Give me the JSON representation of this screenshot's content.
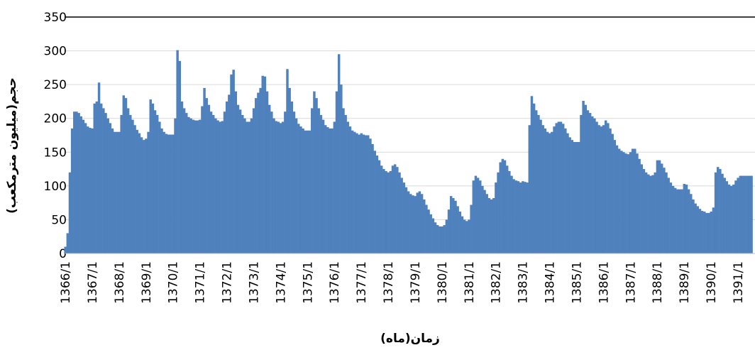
{
  "chart_data": {
    "type": "bar",
    "ylabel": "حجم(میلیون مترمکعب)",
    "xlabel": "زمان(ماه)",
    "color": "#4f81bd",
    "grid": true,
    "ylim": [
      0,
      350
    ],
    "yticks": [
      0,
      50,
      100,
      150,
      200,
      250,
      300,
      350
    ],
    "categories": [
      "1366/1",
      null,
      null,
      null,
      null,
      null,
      null,
      null,
      null,
      null,
      null,
      null,
      "1367/1",
      null,
      null,
      null,
      null,
      null,
      null,
      null,
      null,
      null,
      null,
      null,
      "1368/1",
      null,
      null,
      null,
      null,
      null,
      null,
      null,
      null,
      null,
      null,
      null,
      "1369/1",
      null,
      null,
      null,
      null,
      null,
      null,
      null,
      null,
      null,
      null,
      null,
      "1370/1",
      null,
      null,
      null,
      null,
      null,
      null,
      null,
      null,
      null,
      null,
      null,
      "1371/1",
      null,
      null,
      null,
      null,
      null,
      null,
      null,
      null,
      null,
      null,
      null,
      "1372/1",
      null,
      null,
      null,
      null,
      null,
      null,
      null,
      null,
      null,
      null,
      null,
      "1373/1",
      null,
      null,
      null,
      null,
      null,
      null,
      null,
      null,
      null,
      null,
      null,
      "1374/1",
      null,
      null,
      null,
      null,
      null,
      null,
      null,
      null,
      null,
      null,
      null,
      "1375/1",
      null,
      null,
      null,
      null,
      null,
      null,
      null,
      null,
      null,
      null,
      null,
      "1376/1",
      null,
      null,
      null,
      null,
      null,
      null,
      null,
      null,
      null,
      null,
      null,
      "1377/1",
      null,
      null,
      null,
      null,
      null,
      null,
      null,
      null,
      null,
      null,
      null,
      "1378/1",
      null,
      null,
      null,
      null,
      null,
      null,
      null,
      null,
      null,
      null,
      null,
      "1379/1",
      null,
      null,
      null,
      null,
      null,
      null,
      null,
      null,
      null,
      null,
      null,
      "1380/1",
      null,
      null,
      null,
      null,
      null,
      null,
      null,
      null,
      null,
      null,
      null,
      "1381/1",
      null,
      null,
      null,
      null,
      null,
      null,
      null,
      null,
      null,
      null,
      null,
      "1382/1",
      null,
      null,
      null,
      null,
      null,
      null,
      null,
      null,
      null,
      null,
      null,
      "1383/1",
      null,
      null,
      null,
      null,
      null,
      null,
      null,
      null,
      null,
      null,
      null,
      "1384/1",
      null,
      null,
      null,
      null,
      null,
      null,
      null,
      null,
      null,
      null,
      null,
      "1385/1",
      null,
      null,
      null,
      null,
      null,
      null,
      null,
      null,
      null,
      null,
      null,
      "1386/1",
      null,
      null,
      null,
      null,
      null,
      null,
      null,
      null,
      null,
      null,
      null,
      "1387/1",
      null,
      null,
      null,
      null,
      null,
      null,
      null,
      null,
      null,
      null,
      null,
      "1388/1",
      null,
      null,
      null,
      null,
      null,
      null,
      null,
      null,
      null,
      null,
      null,
      "1389/1",
      null,
      null,
      null,
      null,
      null,
      null,
      null,
      null,
      null,
      null,
      null,
      "1390/1",
      null,
      null,
      null,
      null,
      null,
      null,
      null,
      null,
      null,
      null,
      null,
      "1391/1",
      null,
      null,
      null,
      null,
      null,
      null
    ],
    "values": [
      10,
      30,
      120,
      185,
      210,
      210,
      208,
      203,
      198,
      193,
      188,
      186,
      185,
      222,
      225,
      253,
      222,
      215,
      208,
      200,
      193,
      185,
      180,
      180,
      180,
      205,
      234,
      230,
      215,
      205,
      198,
      190,
      183,
      178,
      172,
      168,
      170,
      180,
      228,
      222,
      212,
      205,
      195,
      185,
      180,
      177,
      176,
      176,
      176,
      200,
      301,
      285,
      225,
      215,
      208,
      202,
      200,
      198,
      197,
      197,
      198,
      218,
      245,
      230,
      220,
      210,
      205,
      200,
      197,
      195,
      196,
      210,
      225,
      235,
      265,
      272,
      240,
      220,
      213,
      205,
      200,
      195,
      195,
      200,
      215,
      230,
      238,
      245,
      263,
      262,
      240,
      220,
      210,
      200,
      196,
      195,
      193,
      195,
      210,
      273,
      245,
      225,
      210,
      200,
      192,
      188,
      185,
      182,
      182,
      182,
      215,
      240,
      230,
      215,
      205,
      198,
      190,
      187,
      185,
      185,
      195,
      240,
      295,
      250,
      215,
      205,
      195,
      188,
      182,
      180,
      178,
      176,
      178,
      176,
      175,
      175,
      170,
      162,
      152,
      145,
      138,
      130,
      125,
      122,
      120,
      122,
      130,
      132,
      128,
      120,
      112,
      105,
      98,
      92,
      88,
      86,
      85,
      90,
      92,
      88,
      80,
      72,
      65,
      58,
      52,
      46,
      42,
      40,
      40,
      42,
      50,
      65,
      85,
      82,
      78,
      70,
      62,
      55,
      50,
      48,
      50,
      72,
      108,
      115,
      112,
      108,
      100,
      94,
      88,
      82,
      80,
      82,
      105,
      120,
      135,
      140,
      138,
      130,
      122,
      115,
      110,
      108,
      107,
      105,
      107,
      106,
      105,
      190,
      233,
      222,
      212,
      205,
      198,
      190,
      185,
      180,
      178,
      180,
      188,
      193,
      195,
      195,
      192,
      185,
      178,
      172,
      168,
      165,
      165,
      165,
      205,
      226,
      220,
      212,
      208,
      203,
      200,
      195,
      190,
      188,
      190,
      197,
      193,
      185,
      177,
      168,
      160,
      155,
      152,
      150,
      148,
      147,
      150,
      155,
      155,
      148,
      140,
      132,
      125,
      120,
      117,
      115,
      116,
      120,
      138,
      138,
      133,
      127,
      120,
      112,
      105,
      100,
      97,
      95,
      95,
      95,
      103,
      102,
      95,
      88,
      80,
      74,
      70,
      66,
      63,
      62,
      60,
      60,
      62,
      68,
      120,
      128,
      125,
      118,
      112,
      107,
      102,
      100,
      102,
      108,
      112,
      115,
      115,
      115,
      115,
      115,
      115
    ]
  }
}
